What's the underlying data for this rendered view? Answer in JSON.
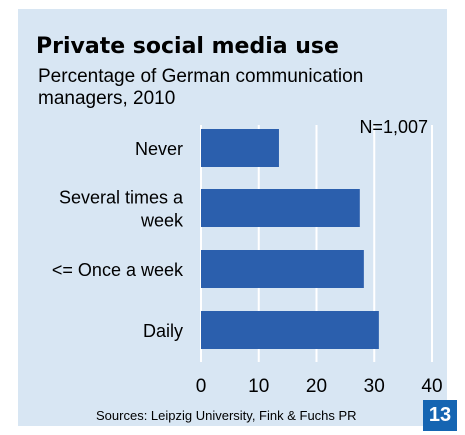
{
  "chart_data": {
    "type": "bar",
    "orientation": "horizontal",
    "title": "Private social media use",
    "subtitle": "Percentage of German communication managers, 2010",
    "annotation": "N=1,007",
    "categories": [
      "Never",
      "Several times a week",
      "<= Once a week",
      "Daily"
    ],
    "category_lines": [
      [
        "Never"
      ],
      [
        "Several times a",
        "week"
      ],
      [
        "<= Once a week"
      ],
      [
        "Daily"
      ]
    ],
    "values": [
      13.5,
      27.5,
      28.2,
      30.8
    ],
    "xlim": [
      0,
      40
    ],
    "xticks": [
      "0",
      "10",
      "20",
      "30",
      "40"
    ],
    "grid": "vertical",
    "bar_color": "#2b5fad",
    "background_color": "#d8e6f3"
  },
  "source": "Sources: Leipzig University, Fink & Fuchs PR",
  "page_number": "13",
  "colors": {
    "accent": "#1565b2"
  }
}
